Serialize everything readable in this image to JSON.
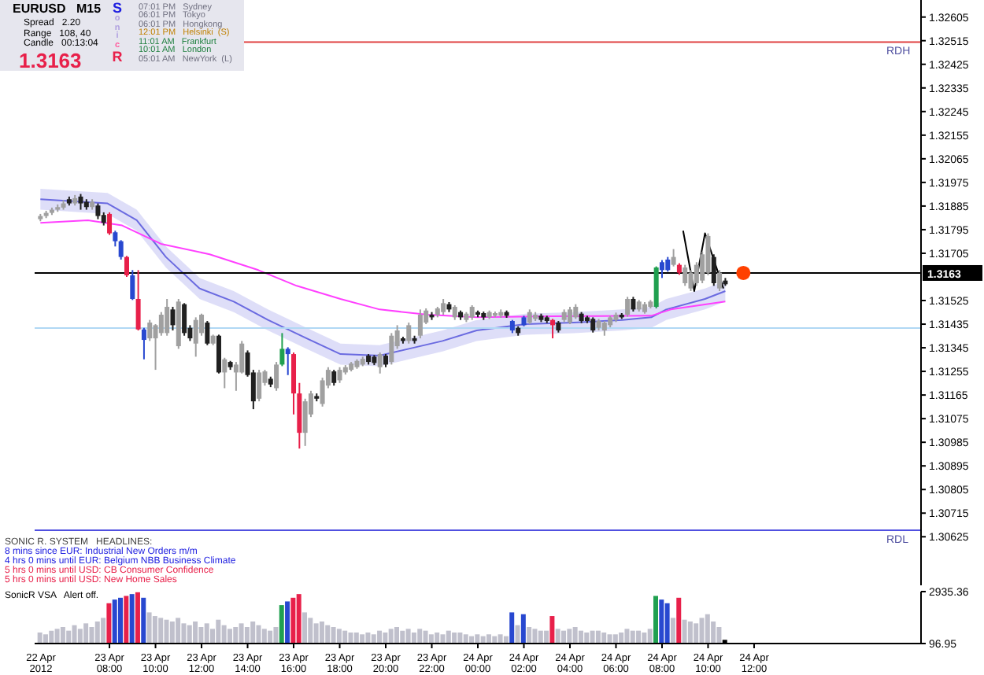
{
  "chart_data": [
    {
      "type": "candlestick",
      "x": [
        "2012-04-23T05:00",
        "2012-04-23T05:15",
        "2012-04-23T05:30",
        "2012-04-23T05:45",
        "2012-04-23T06:00",
        "2012-04-23T06:15",
        "2012-04-23T06:30",
        "2012-04-23T06:45",
        "2012-04-23T07:00",
        "2012-04-23T07:15",
        "2012-04-23T07:30",
        "2012-04-23T07:45",
        "2012-04-23T08:00",
        "2012-04-23T08:15",
        "2012-04-23T08:30",
        "2012-04-23T08:45",
        "2012-04-23T09:00",
        "2012-04-23T09:15",
        "2012-04-23T09:30",
        "2012-04-23T09:45",
        "2012-04-23T10:00",
        "2012-04-23T10:15",
        "2012-04-23T10:30",
        "2012-04-23T10:45",
        "2012-04-23T11:00",
        "2012-04-23T11:15",
        "2012-04-23T11:30",
        "2012-04-23T11:45",
        "2012-04-23T12:00",
        "2012-04-23T12:15",
        "2012-04-23T12:30",
        "2012-04-23T12:45",
        "2012-04-23T13:00",
        "2012-04-23T13:15",
        "2012-04-23T13:30",
        "2012-04-23T13:45",
        "2012-04-23T14:00",
        "2012-04-23T14:15",
        "2012-04-23T14:30",
        "2012-04-23T14:45",
        "2012-04-23T15:00",
        "2012-04-23T15:15",
        "2012-04-23T15:30",
        "2012-04-23T15:45",
        "2012-04-23T16:00",
        "2012-04-23T16:15",
        "2012-04-23T16:30",
        "2012-04-23T16:45",
        "2012-04-23T17:00",
        "2012-04-23T17:15",
        "2012-04-23T17:30",
        "2012-04-23T17:45",
        "2012-04-23T18:00",
        "2012-04-23T18:15",
        "2012-04-23T18:30",
        "2012-04-23T18:45",
        "2012-04-23T19:00",
        "2012-04-23T19:15",
        "2012-04-23T19:30",
        "2012-04-23T19:45",
        "2012-04-23T20:00",
        "2012-04-23T20:15",
        "2012-04-23T20:30",
        "2012-04-23T20:45",
        "2012-04-23T21:00",
        "2012-04-23T21:15",
        "2012-04-23T21:30",
        "2012-04-23T21:45",
        "2012-04-23T22:00",
        "2012-04-23T22:15",
        "2012-04-23T22:30",
        "2012-04-23T22:45",
        "2012-04-23T23:00",
        "2012-04-23T23:15",
        "2012-04-23T23:30",
        "2012-04-23T23:45",
        "2012-04-24T00:00",
        "2012-04-24T00:15",
        "2012-04-24T00:30",
        "2012-04-24T00:45",
        "2012-04-24T01:00",
        "2012-04-24T01:15",
        "2012-04-24T01:30",
        "2012-04-24T01:45",
        "2012-04-24T02:00",
        "2012-04-24T02:15",
        "2012-04-24T02:30",
        "2012-04-24T02:45",
        "2012-04-24T03:00",
        "2012-04-24T03:15",
        "2012-04-24T03:30",
        "2012-04-24T03:45",
        "2012-04-24T04:00",
        "2012-04-24T04:15",
        "2012-04-24T04:30",
        "2012-04-24T04:45",
        "2012-04-24T05:00",
        "2012-04-24T05:15",
        "2012-04-24T05:30",
        "2012-04-24T05:45",
        "2012-04-24T06:00",
        "2012-04-24T06:15",
        "2012-04-24T06:30",
        "2012-04-24T06:45",
        "2012-04-24T07:00",
        "2012-04-24T07:15",
        "2012-04-24T07:30",
        "2012-04-24T07:45",
        "2012-04-24T08:00",
        "2012-04-24T08:15",
        "2012-04-24T08:30",
        "2012-04-24T08:45",
        "2012-04-24T09:00",
        "2012-04-24T09:15",
        "2012-04-24T09:30",
        "2012-04-24T09:45",
        "2012-04-24T10:00",
        "2012-04-24T10:15",
        "2012-04-24T10:30",
        "2012-04-24T10:45"
      ],
      "ohlc": [
        [
          1.31835,
          1.31855,
          1.31827,
          1.31847
        ],
        [
          1.31847,
          1.31867,
          1.31839,
          1.31859
        ],
        [
          1.31859,
          1.31879,
          1.31851,
          1.31871
        ],
        [
          1.31871,
          1.31891,
          1.31863,
          1.31881
        ],
        [
          1.31879,
          1.31907,
          1.31871,
          1.31895
        ],
        [
          1.31911,
          1.31921,
          1.31887,
          1.31895
        ],
        [
          1.31895,
          1.31927,
          1.31887,
          1.31915
        ],
        [
          1.31921,
          1.31931,
          1.31871,
          1.31895
        ],
        [
          1.31901,
          1.31911,
          1.31871,
          1.31881
        ],
        [
          1.31881,
          1.31911,
          1.31871,
          1.31901
        ],
        [
          1.31887,
          1.31895,
          1.31835,
          1.31847
        ],
        [
          1.31851,
          1.31861,
          1.31811,
          1.31821
        ],
        [
          1.31855,
          1.31861,
          1.31775,
          1.31781
        ],
        [
          1.31785,
          1.31791,
          1.31731,
          1.31751
        ],
        [
          1.31751,
          1.31755,
          1.31681,
          1.31691
        ],
        [
          1.31691,
          1.31695,
          1.31615,
          1.31621
        ],
        [
          1.31621,
          1.31641,
          1.31527,
          1.31531
        ],
        [
          1.31531,
          1.31641,
          1.31411,
          1.31415
        ],
        [
          1.31415,
          1.31421,
          1.31301,
          1.31375
        ],
        [
          1.31381,
          1.31451,
          1.31371,
          1.31441
        ],
        [
          1.31381,
          1.31435,
          1.31261,
          1.31431
        ],
        [
          1.31401,
          1.31481,
          1.31391,
          1.31471
        ],
        [
          1.31401,
          1.31531,
          1.31391,
          1.31501
        ],
        [
          1.31491,
          1.31501,
          1.31411,
          1.31431
        ],
        [
          1.31351,
          1.31531,
          1.31341,
          1.31521
        ],
        [
          1.31511,
          1.31515,
          1.31391,
          1.31401
        ],
        [
          1.31421,
          1.31431,
          1.31371,
          1.31381
        ],
        [
          1.31361,
          1.31461,
          1.31311,
          1.31451
        ],
        [
          1.31401,
          1.31475,
          1.31391,
          1.31471
        ],
        [
          1.31441,
          1.31447,
          1.31355,
          1.31361
        ],
        [
          1.31361,
          1.31395,
          1.31355,
          1.31391
        ],
        [
          1.31391,
          1.31395,
          1.31247,
          1.31251
        ],
        [
          1.31251,
          1.31307,
          1.31191,
          1.31301
        ],
        [
          1.31291,
          1.31295,
          1.31261,
          1.31271
        ],
        [
          1.31251,
          1.31291,
          1.31181,
          1.31281
        ],
        [
          1.31251,
          1.31371,
          1.31247,
          1.31361
        ],
        [
          1.31327,
          1.31335,
          1.31235,
          1.31241
        ],
        [
          1.31251,
          1.31261,
          1.31111,
          1.31141
        ],
        [
          1.31151,
          1.31261,
          1.31141,
          1.31251
        ],
        [
          1.31211,
          1.31261,
          1.31201,
          1.31255
        ],
        [
          1.31227,
          1.31235,
          1.31195,
          1.31205
        ],
        [
          1.31191,
          1.31291,
          1.31181,
          1.31281
        ],
        [
          1.31281,
          1.31401,
          1.31275,
          1.31341
        ],
        [
          1.31341,
          1.31347,
          1.31241,
          1.31321
        ],
        [
          1.31321,
          1.31327,
          1.31091,
          1.31171
        ],
        [
          1.31171,
          1.31211,
          1.30961,
          1.31021
        ],
        [
          1.31021,
          1.31151,
          1.30971,
          1.31141
        ],
        [
          1.31091,
          1.31181,
          1.31081,
          1.31171
        ],
        [
          1.31161,
          1.31171,
          1.31141,
          1.31151
        ],
        [
          1.31131,
          1.31231,
          1.31121,
          1.31221
        ],
        [
          1.31201,
          1.31271,
          1.31191,
          1.31261
        ],
        [
          1.31255,
          1.31261,
          1.31201,
          1.31211
        ],
        [
          1.31221,
          1.31271,
          1.31211,
          1.31261
        ],
        [
          1.31251,
          1.31279,
          1.31243,
          1.31271
        ],
        [
          1.31261,
          1.31291,
          1.31255,
          1.31285
        ],
        [
          1.31271,
          1.31301,
          1.31265,
          1.31295
        ],
        [
          1.31281,
          1.31311,
          1.31275,
          1.31303
        ],
        [
          1.31315,
          1.31321,
          1.31281,
          1.31291
        ],
        [
          1.31311,
          1.31317,
          1.31279,
          1.31287
        ],
        [
          1.31271,
          1.31327,
          1.31247,
          1.31321
        ],
        [
          1.31315,
          1.31321,
          1.31271,
          1.31281
        ],
        [
          1.31291,
          1.31401,
          1.31281,
          1.31391
        ],
        [
          1.31351,
          1.31431,
          1.31341,
          1.31411
        ],
        [
          1.31381,
          1.31387,
          1.31361,
          1.31371
        ],
        [
          1.31371,
          1.31441,
          1.31361,
          1.31431
        ],
        [
          1.31381,
          1.31391,
          1.31361,
          1.31371
        ],
        [
          1.31391,
          1.31491,
          1.31381,
          1.31471
        ],
        [
          1.31441,
          1.31495,
          1.31435,
          1.31487
        ],
        [
          1.31471,
          1.31481,
          1.31451,
          1.31461
        ],
        [
          1.31471,
          1.31501,
          1.31461,
          1.31495
        ],
        [
          1.31481,
          1.31531,
          1.31471,
          1.31515
        ],
        [
          1.31511,
          1.31519,
          1.31481,
          1.31491
        ],
        [
          1.31461,
          1.31507,
          1.31451,
          1.31501
        ],
        [
          1.31481,
          1.31487,
          1.31451,
          1.31461
        ],
        [
          1.31451,
          1.31481,
          1.31443,
          1.31475
        ],
        [
          1.31461,
          1.31507,
          1.31451,
          1.31501
        ],
        [
          1.31481,
          1.31487,
          1.31461,
          1.31471
        ],
        [
          1.31477,
          1.31483,
          1.31451,
          1.31461
        ],
        [
          1.31461,
          1.31487,
          1.31455,
          1.31481
        ],
        [
          1.31467,
          1.31483,
          1.31461,
          1.31477
        ],
        [
          1.31467,
          1.31491,
          1.31459,
          1.31481
        ],
        [
          1.31481,
          1.31487,
          1.31459,
          1.31467
        ],
        [
          1.31447,
          1.31451,
          1.31401,
          1.31411
        ],
        [
          1.31421,
          1.31427,
          1.31391,
          1.31401
        ],
        [
          1.31431,
          1.31467,
          1.31427,
          1.31461
        ],
        [
          1.31441,
          1.31491,
          1.31435,
          1.31481
        ],
        [
          1.31455,
          1.31481,
          1.31447,
          1.31471
        ],
        [
          1.31467,
          1.31475,
          1.31443,
          1.31451
        ],
        [
          1.31461,
          1.31467,
          1.31439,
          1.31447
        ],
        [
          1.31451,
          1.31455,
          1.31381,
          1.31431
        ],
        [
          1.31441,
          1.31447,
          1.31403,
          1.31411
        ],
        [
          1.31451,
          1.31491,
          1.31443,
          1.31481
        ],
        [
          1.31441,
          1.31501,
          1.31435,
          1.31491
        ],
        [
          1.31461,
          1.31511,
          1.31455,
          1.31501
        ],
        [
          1.31475,
          1.31481,
          1.31439,
          1.31447
        ],
        [
          1.31461,
          1.31467,
          1.31439,
          1.31447
        ],
        [
          1.31455,
          1.31461,
          1.31403,
          1.31411
        ],
        [
          1.31421,
          1.31455,
          1.31411,
          1.31447
        ],
        [
          1.31411,
          1.31447,
          1.31391,
          1.31441
        ],
        [
          1.31431,
          1.31467,
          1.31423,
          1.31461
        ],
        [
          1.31451,
          1.31479,
          1.31443,
          1.31471
        ],
        [
          1.31471,
          1.31477,
          1.31455,
          1.31461
        ],
        [
          1.31471,
          1.31539,
          1.31463,
          1.31531
        ],
        [
          1.31531,
          1.31539,
          1.31483,
          1.31491
        ],
        [
          1.31491,
          1.31527,
          1.31483,
          1.31521
        ],
        [
          1.31481,
          1.31519,
          1.31475,
          1.31511
        ],
        [
          1.31501,
          1.31527,
          1.31495,
          1.31521
        ],
        [
          1.31501,
          1.31655,
          1.31495,
          1.31651
        ],
        [
          1.31641,
          1.31679,
          1.31611,
          1.31671
        ],
        [
          1.31641,
          1.31691,
          1.31635,
          1.31681
        ],
        [
          1.31661,
          1.31721,
          1.31655,
          1.31691
        ],
        [
          1.31661,
          1.31667,
          1.31623,
          1.31631
        ],
        [
          1.31591,
          1.31661,
          1.31581,
          1.31651
        ],
        [
          1.31571,
          1.31641,
          1.31561,
          1.31631
        ],
        [
          1.31591,
          1.31671,
          1.31581,
          1.31661
        ],
        [
          1.31601,
          1.31711,
          1.31591,
          1.31701
        ],
        [
          1.31631,
          1.31781,
          1.31621,
          1.31771
        ],
        [
          1.31691,
          1.31701,
          1.31581,
          1.31591
        ],
        [
          1.31571,
          1.31641,
          1.31561,
          1.31631
        ],
        [
          1.31601,
          1.31611,
          1.31581,
          1.31587
        ]
      ],
      "colors": [
        "#a0a0a0",
        "#a0a0a0",
        "#a0a0a0",
        "#a0a0a0",
        "#a0a0a0",
        "#202020",
        "#a0a0a0",
        "#202020",
        "#202020",
        "#a0a0a0",
        "#202020",
        "#202020",
        "#e8204a",
        "#2848d0",
        "#2848d0",
        "#e8204a",
        "#2848d0",
        "#e8204a",
        "#2848d0",
        "#a0a0a0",
        "#a0a0a0",
        "#a0a0a0",
        "#a0a0a0",
        "#202020",
        "#a0a0a0",
        "#202020",
        "#202020",
        "#a0a0a0",
        "#a0a0a0",
        "#202020",
        "#a0a0a0",
        "#202020",
        "#a0a0a0",
        "#202020",
        "#a0a0a0",
        "#a0a0a0",
        "#202020",
        "#202020",
        "#a0a0a0",
        "#a0a0a0",
        "#202020",
        "#a0a0a0",
        "#20a050",
        "#2848d0",
        "#e8204a",
        "#e8204a",
        "#a0a0a0",
        "#a0a0a0",
        "#202020",
        "#a0a0a0",
        "#a0a0a0",
        "#202020",
        "#a0a0a0",
        "#a0a0a0",
        "#a0a0a0",
        "#a0a0a0",
        "#a0a0a0",
        "#202020",
        "#202020",
        "#a0a0a0",
        "#202020",
        "#a0a0a0",
        "#a0a0a0",
        "#202020",
        "#a0a0a0",
        "#202020",
        "#a0a0a0",
        "#a0a0a0",
        "#202020",
        "#a0a0a0",
        "#a0a0a0",
        "#202020",
        "#a0a0a0",
        "#202020",
        "#a0a0a0",
        "#a0a0a0",
        "#202020",
        "#202020",
        "#a0a0a0",
        "#a0a0a0",
        "#a0a0a0",
        "#202020",
        "#2848d0",
        "#202020",
        "#2848d0",
        "#a0a0a0",
        "#a0a0a0",
        "#202020",
        "#202020",
        "#e8204a",
        "#202020",
        "#a0a0a0",
        "#a0a0a0",
        "#a0a0a0",
        "#202020",
        "#202020",
        "#202020",
        "#a0a0a0",
        "#a0a0a0",
        "#a0a0a0",
        "#a0a0a0",
        "#202020",
        "#a0a0a0",
        "#202020",
        "#a0a0a0",
        "#a0a0a0",
        "#a0a0a0",
        "#20a050",
        "#2848d0",
        "#2848d0",
        "#a0a0a0",
        "#e8204a",
        "#a0a0a0",
        "#a0a0a0",
        "#a0a0a0",
        "#a0a0a0",
        "#a0a0a0",
        "#202020",
        "#a0a0a0",
        "#202020"
      ],
      "series": [
        {
          "type": "line",
          "color": "#6a6ae0",
          "x": [
            "2012-04-23T05:00",
            "2012-04-23T07:55",
            "2012-04-23T09:11",
            "2012-04-23T10:27",
            "2012-04-23T11:55",
            "2012-04-23T13:24",
            "2012-04-23T14:53",
            "2012-04-23T16:34",
            "2012-04-23T18:02",
            "2012-04-23T19:44",
            "2012-04-23T21:00",
            "2012-04-23T22:28",
            "2012-04-23T23:57",
            "2012-04-24T02:04",
            "2012-04-24T04:10",
            "2012-04-24T06:17",
            "2012-04-24T07:32",
            "2012-04-24T08:11",
            "2012-04-24T09:52",
            "2012-04-24T10:45"
          ],
          "values": [
            1.31911,
            1.31895,
            1.31831,
            1.31691,
            1.31571,
            1.31521,
            1.31451,
            1.31381,
            1.31321,
            1.31315,
            1.31341,
            1.31371,
            1.31411,
            1.31435,
            1.31441,
            1.31451,
            1.31461,
            1.31491,
            1.31531,
            1.31561
          ],
          "lower": [
            1.31871,
            1.31855,
            1.31791,
            1.31651,
            1.31531,
            1.31481,
            1.31411,
            1.31341,
            1.31281,
            1.31275,
            1.31301,
            1.31331,
            1.31371,
            1.31395,
            1.31401,
            1.31411,
            1.31421,
            1.31451,
            1.31491,
            1.31521
          ],
          "upper": [
            1.31951,
            1.31935,
            1.31871,
            1.31731,
            1.31611,
            1.31561,
            1.31491,
            1.31421,
            1.31361,
            1.31355,
            1.31381,
            1.31411,
            1.31451,
            1.31475,
            1.31481,
            1.31491,
            1.31501,
            1.31531,
            1.31571,
            1.31601
          ]
        },
        {
          "type": "line",
          "color": "#ff40ff",
          "x": [
            "2012-04-23T05:00",
            "2012-04-23T07:04",
            "2012-04-23T08:33",
            "2012-04-23T10:14",
            "2012-04-23T12:21",
            "2012-04-23T14:28",
            "2012-04-23T16:08",
            "2012-04-23T18:02",
            "2012-04-23T19:44",
            "2012-04-23T21:50",
            "2012-04-23T23:57",
            "2012-04-24T03:07",
            "2012-04-24T07:32",
            "2012-04-24T08:23",
            "2012-04-24T10:45"
          ],
          "values": [
            1.31821,
            1.31831,
            1.31811,
            1.31741,
            1.31701,
            1.31641,
            1.31581,
            1.31531,
            1.31491,
            1.31471,
            1.31461,
            1.31465,
            1.31467,
            1.31491,
            1.31521
          ]
        },
        {
          "type": "line",
          "color": "#000000",
          "x": [
            "2012-04-24T08:55",
            "2012-04-24T09:24",
            "2012-04-24T09:52",
            "2012-04-24T10:40"
          ],
          "values": [
            1.31791,
            1.31561,
            1.31781,
            1.31571
          ]
        },
        {
          "type": "scatter",
          "color": "#ff4000",
          "x": [
            "2012-04-24T11:32"
          ],
          "values": [
            1.3163
          ]
        }
      ],
      "xlim": [
        "2012-04-23T04:45",
        "2012-04-24T19:15"
      ],
      "ylim": [
        1.3044,
        1.3267
      ],
      "yticks": [
        1.32605,
        1.32515,
        1.32425,
        1.32335,
        1.32245,
        1.32155,
        1.32065,
        1.31975,
        1.31885,
        1.31795,
        1.31705,
        1.31525,
        1.31435,
        1.31345,
        1.31255,
        1.31165,
        1.31075,
        1.30985,
        1.30895,
        1.30805,
        1.30715,
        1.30625
      ],
      "tick_labels": "y",
      "ref_lines": [
        {
          "axis": "y",
          "value": 1.3163,
          "label": "1.3163",
          "color": "#000000"
        },
        {
          "axis": "y",
          "value": 1.3251,
          "label": "RDH",
          "color": "#e04040"
        },
        {
          "axis": "y",
          "value": 1.3065,
          "label": "RDL",
          "color": "#5050e0"
        },
        {
          "axis": "y",
          "value": 1.3142,
          "color": "#b0d8f4"
        }
      ],
      "annotations": [
        "EURUSD   M15",
        "Spread   2.20",
        "Range   108, 40",
        "Candle   00:13:04",
        "1.3163",
        "SonicR",
        "07:01 PM   Sydney",
        "06:01 PM   Tokyo",
        "06:01 PM   Hongkong",
        "12:01 PM   Helsinki  (S)",
        "11:01 AM   Frankfurt",
        "10:01 AM   London",
        "05:01 AM   NewYork  (L)",
        "SONIC R. SYSTEM   HEADLINES:",
        "8 mins since EUR: Industrial New Orders m/m",
        "4 hrs 0 mins until EUR: Belgium NBB Business Climate",
        "5 hrs 0 mins until USD: CB Consumer Confidence",
        "5 hrs 0 mins until USD: New Home Sales"
      ]
    },
    {
      "type": "bar",
      "x": [
        "2012-04-23T05:00",
        "2012-04-23T05:15",
        "2012-04-23T05:30",
        "2012-04-23T05:45",
        "2012-04-23T06:00",
        "2012-04-23T06:15",
        "2012-04-23T06:30",
        "2012-04-23T06:45",
        "2012-04-23T07:00",
        "2012-04-23T07:15",
        "2012-04-23T07:30",
        "2012-04-23T07:45",
        "2012-04-23T08:00",
        "2012-04-23T08:15",
        "2012-04-23T08:30",
        "2012-04-23T08:45",
        "2012-04-23T09:00",
        "2012-04-23T09:15",
        "2012-04-23T09:30",
        "2012-04-23T09:45",
        "2012-04-23T10:00",
        "2012-04-23T10:15",
        "2012-04-23T10:30",
        "2012-04-23T10:45",
        "2012-04-23T11:00",
        "2012-04-23T11:15",
        "2012-04-23T11:30",
        "2012-04-23T11:45",
        "2012-04-23T12:00",
        "2012-04-23T12:15",
        "2012-04-23T12:30",
        "2012-04-23T12:45",
        "2012-04-23T13:00",
        "2012-04-23T13:15",
        "2012-04-23T13:30",
        "2012-04-23T13:45",
        "2012-04-23T14:00",
        "2012-04-23T14:15",
        "2012-04-23T14:30",
        "2012-04-23T14:45",
        "2012-04-23T15:00",
        "2012-04-23T15:15",
        "2012-04-23T15:30",
        "2012-04-23T15:45",
        "2012-04-23T16:00",
        "2012-04-23T16:15",
        "2012-04-23T16:30",
        "2012-04-23T16:45",
        "2012-04-23T17:00",
        "2012-04-23T17:15",
        "2012-04-23T17:30",
        "2012-04-23T17:45",
        "2012-04-23T18:00",
        "2012-04-23T18:15",
        "2012-04-23T18:30",
        "2012-04-23T18:45",
        "2012-04-23T19:00",
        "2012-04-23T19:15",
        "2012-04-23T19:30",
        "2012-04-23T19:45",
        "2012-04-23T20:00",
        "2012-04-23T20:15",
        "2012-04-23T20:30",
        "2012-04-23T20:45",
        "2012-04-23T21:00",
        "2012-04-23T21:15",
        "2012-04-23T21:30",
        "2012-04-23T21:45",
        "2012-04-23T22:00",
        "2012-04-23T22:15",
        "2012-04-23T22:30",
        "2012-04-23T22:45",
        "2012-04-23T23:00",
        "2012-04-23T23:15",
        "2012-04-23T23:30",
        "2012-04-23T23:45",
        "2012-04-24T00:00",
        "2012-04-24T00:15",
        "2012-04-24T00:30",
        "2012-04-24T00:45",
        "2012-04-24T01:00",
        "2012-04-24T01:15",
        "2012-04-24T01:30",
        "2012-04-24T01:45",
        "2012-04-24T02:00",
        "2012-04-24T02:15",
        "2012-04-24T02:30",
        "2012-04-24T02:45",
        "2012-04-24T03:00",
        "2012-04-24T03:15",
        "2012-04-24T03:30",
        "2012-04-24T03:45",
        "2012-04-24T04:00",
        "2012-04-24T04:15",
        "2012-04-24T04:30",
        "2012-04-24T04:45",
        "2012-04-24T05:00",
        "2012-04-24T05:15",
        "2012-04-24T05:30",
        "2012-04-24T05:45",
        "2012-04-24T06:00",
        "2012-04-24T06:15",
        "2012-04-24T06:30",
        "2012-04-24T06:45",
        "2012-04-24T07:00",
        "2012-04-24T07:15",
        "2012-04-24T07:30",
        "2012-04-24T07:45",
        "2012-04-24T08:00",
        "2012-04-24T08:15",
        "2012-04-24T08:30",
        "2012-04-24T08:45",
        "2012-04-24T09:00",
        "2012-04-24T09:15",
        "2012-04-24T09:30",
        "2012-04-24T09:45",
        "2012-04-24T10:00",
        "2012-04-24T10:15",
        "2012-04-24T10:30",
        "2012-04-24T10:45"
      ],
      "values": [
        700,
        600,
        800,
        900,
        1000,
        800,
        1100,
        900,
        1200,
        1000,
        1300,
        1500,
        2300,
        2500,
        2600,
        2700,
        2800,
        2900,
        2600,
        1800,
        1600,
        1500,
        1400,
        1300,
        1500,
        1200,
        1100,
        1300,
        1000,
        1200,
        900,
        1400,
        1100,
        900,
        1000,
        1200,
        1000,
        1300,
        1100,
        900,
        800,
        1000,
        2200,
        2400,
        2600,
        2800,
        1800,
        1500,
        1200,
        1300,
        1100,
        1000,
        900,
        800,
        700,
        700,
        600,
        700,
        600,
        800,
        700,
        900,
        1000,
        800,
        900,
        700,
        900,
        800,
        600,
        700,
        600,
        800,
        700,
        700,
        600,
        500,
        600,
        500,
        600,
        500,
        600,
        500,
        1800,
        1100,
        1700,
        1000,
        900,
        800,
        800,
        1600,
        900,
        800,
        900,
        1000,
        800,
        700,
        800,
        800,
        700,
        600,
        600,
        700,
        900,
        800,
        800,
        700,
        900,
        2700,
        2500,
        2300,
        1500,
        2600,
        1400,
        1300,
        1200,
        1500,
        1700,
        1300,
        1000,
        300
      ],
      "colors": [
        "#c0c0cc",
        "#c0c0cc",
        "#c0c0cc",
        "#c0c0cc",
        "#c0c0cc",
        "#c0c0cc",
        "#c0c0cc",
        "#c0c0cc",
        "#c0c0cc",
        "#c0c0cc",
        "#c0c0cc",
        "#c0c0cc",
        "#e8204a",
        "#2848d0",
        "#2848d0",
        "#e8204a",
        "#2848d0",
        "#e8204a",
        "#2848d0",
        "#c0c0cc",
        "#c0c0cc",
        "#c0c0cc",
        "#c0c0cc",
        "#c0c0cc",
        "#c0c0cc",
        "#c0c0cc",
        "#c0c0cc",
        "#c0c0cc",
        "#c0c0cc",
        "#c0c0cc",
        "#c0c0cc",
        "#c0c0cc",
        "#c0c0cc",
        "#c0c0cc",
        "#c0c0cc",
        "#c0c0cc",
        "#c0c0cc",
        "#c0c0cc",
        "#c0c0cc",
        "#c0c0cc",
        "#c0c0cc",
        "#c0c0cc",
        "#20a050",
        "#2848d0",
        "#e8204a",
        "#e8204a",
        "#c0c0cc",
        "#c0c0cc",
        "#c0c0cc",
        "#c0c0cc",
        "#c0c0cc",
        "#c0c0cc",
        "#c0c0cc",
        "#c0c0cc",
        "#c0c0cc",
        "#c0c0cc",
        "#c0c0cc",
        "#c0c0cc",
        "#c0c0cc",
        "#c0c0cc",
        "#c0c0cc",
        "#c0c0cc",
        "#c0c0cc",
        "#c0c0cc",
        "#c0c0cc",
        "#c0c0cc",
        "#c0c0cc",
        "#c0c0cc",
        "#c0c0cc",
        "#c0c0cc",
        "#c0c0cc",
        "#c0c0cc",
        "#c0c0cc",
        "#c0c0cc",
        "#c0c0cc",
        "#c0c0cc",
        "#c0c0cc",
        "#c0c0cc",
        "#c0c0cc",
        "#c0c0cc",
        "#c0c0cc",
        "#c0c0cc",
        "#2848d0",
        "#c0c0cc",
        "#2848d0",
        "#c0c0cc",
        "#c0c0cc",
        "#c0c0cc",
        "#c0c0cc",
        "#e8204a",
        "#c0c0cc",
        "#c0c0cc",
        "#c0c0cc",
        "#c0c0cc",
        "#c0c0cc",
        "#c0c0cc",
        "#c0c0cc",
        "#c0c0cc",
        "#c0c0cc",
        "#c0c0cc",
        "#c0c0cc",
        "#c0c0cc",
        "#c0c0cc",
        "#c0c0cc",
        "#c0c0cc",
        "#c0c0cc",
        "#c0c0cc",
        "#20a050",
        "#2848d0",
        "#2848d0",
        "#c0c0cc",
        "#e8204a",
        "#c0c0cc",
        "#c0c0cc",
        "#c0c0cc",
        "#c0c0cc",
        "#c0c0cc",
        "#c0c0cc",
        "#c0c0cc",
        "#000000"
      ],
      "xlim": [
        "2012-04-23T04:45",
        "2012-04-24T19:15"
      ],
      "xticks": [
        {
          "value": "2012-04-23T08:00",
          "label": "23 Apr 08:00"
        },
        {
          "value": "2012-04-23T10:00",
          "label": "23 Apr 10:00"
        },
        {
          "value": "2012-04-23T12:00",
          "label": "23 Apr 12:00"
        },
        {
          "value": "2012-04-23T14:00",
          "label": "23 Apr 14:00"
        },
        {
          "value": "2012-04-23T16:00",
          "label": "23 Apr 16:00"
        },
        {
          "value": "2012-04-23T18:00",
          "label": "23 Apr 18:00"
        },
        {
          "value": "2012-04-23T20:00",
          "label": "23 Apr 20:00"
        },
        {
          "value": "2012-04-23T22:00",
          "label": "23 Apr 22:00"
        },
        {
          "value": "2012-04-24T00:00",
          "label": "24 Apr 00:00"
        },
        {
          "value": "2012-04-24T02:00",
          "label": "24 Apr 02:00"
        },
        {
          "value": "2012-04-24T04:00",
          "label": "24 Apr 04:00"
        },
        {
          "value": "2012-04-24T06:00",
          "label": "24 Apr 06:00"
        },
        {
          "value": "2012-04-24T08:00",
          "label": "24 Apr 08:00"
        },
        {
          "value": "2012-04-24T10:00",
          "label": "24 Apr 10:00"
        },
        {
          "value": "2012-04-24T12:00",
          "label": "24 Apr 12:00"
        }
      ],
      "ylim": [
        96.95,
        2935.36
      ],
      "yticks": [
        96.95,
        2935.36
      ],
      "annotations": [
        "SonicR VSA   Alert off.",
        "22 Apr 2012"
      ]
    }
  ]
}
